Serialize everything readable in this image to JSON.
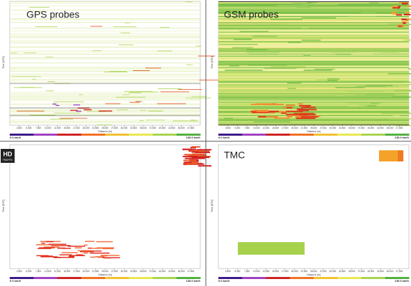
{
  "panels": [
    {
      "title": "GPS probes"
    },
    {
      "title": "GSM probes"
    },
    {
      "title": ""
    },
    {
      "title": "TMC"
    }
  ],
  "logo": {
    "main": "HD",
    "sub": "TRAFFIC"
  },
  "x_axis_label": "Distance [m]",
  "y_axis_label": "Time [UTC]",
  "scale_min": "0.0 km/h",
  "scale_max": "130.0 km/h",
  "x_ticks": [
    "2,500",
    "5,000",
    "7,500",
    "10,000",
    "12,500",
    "15,000",
    "17,500",
    "20,000",
    "22,500",
    "25,000",
    "27,500",
    "30,000",
    "32,500",
    "35,000",
    "37,500",
    "40,000",
    "42,500",
    "45,000",
    "47,500"
  ]
}
